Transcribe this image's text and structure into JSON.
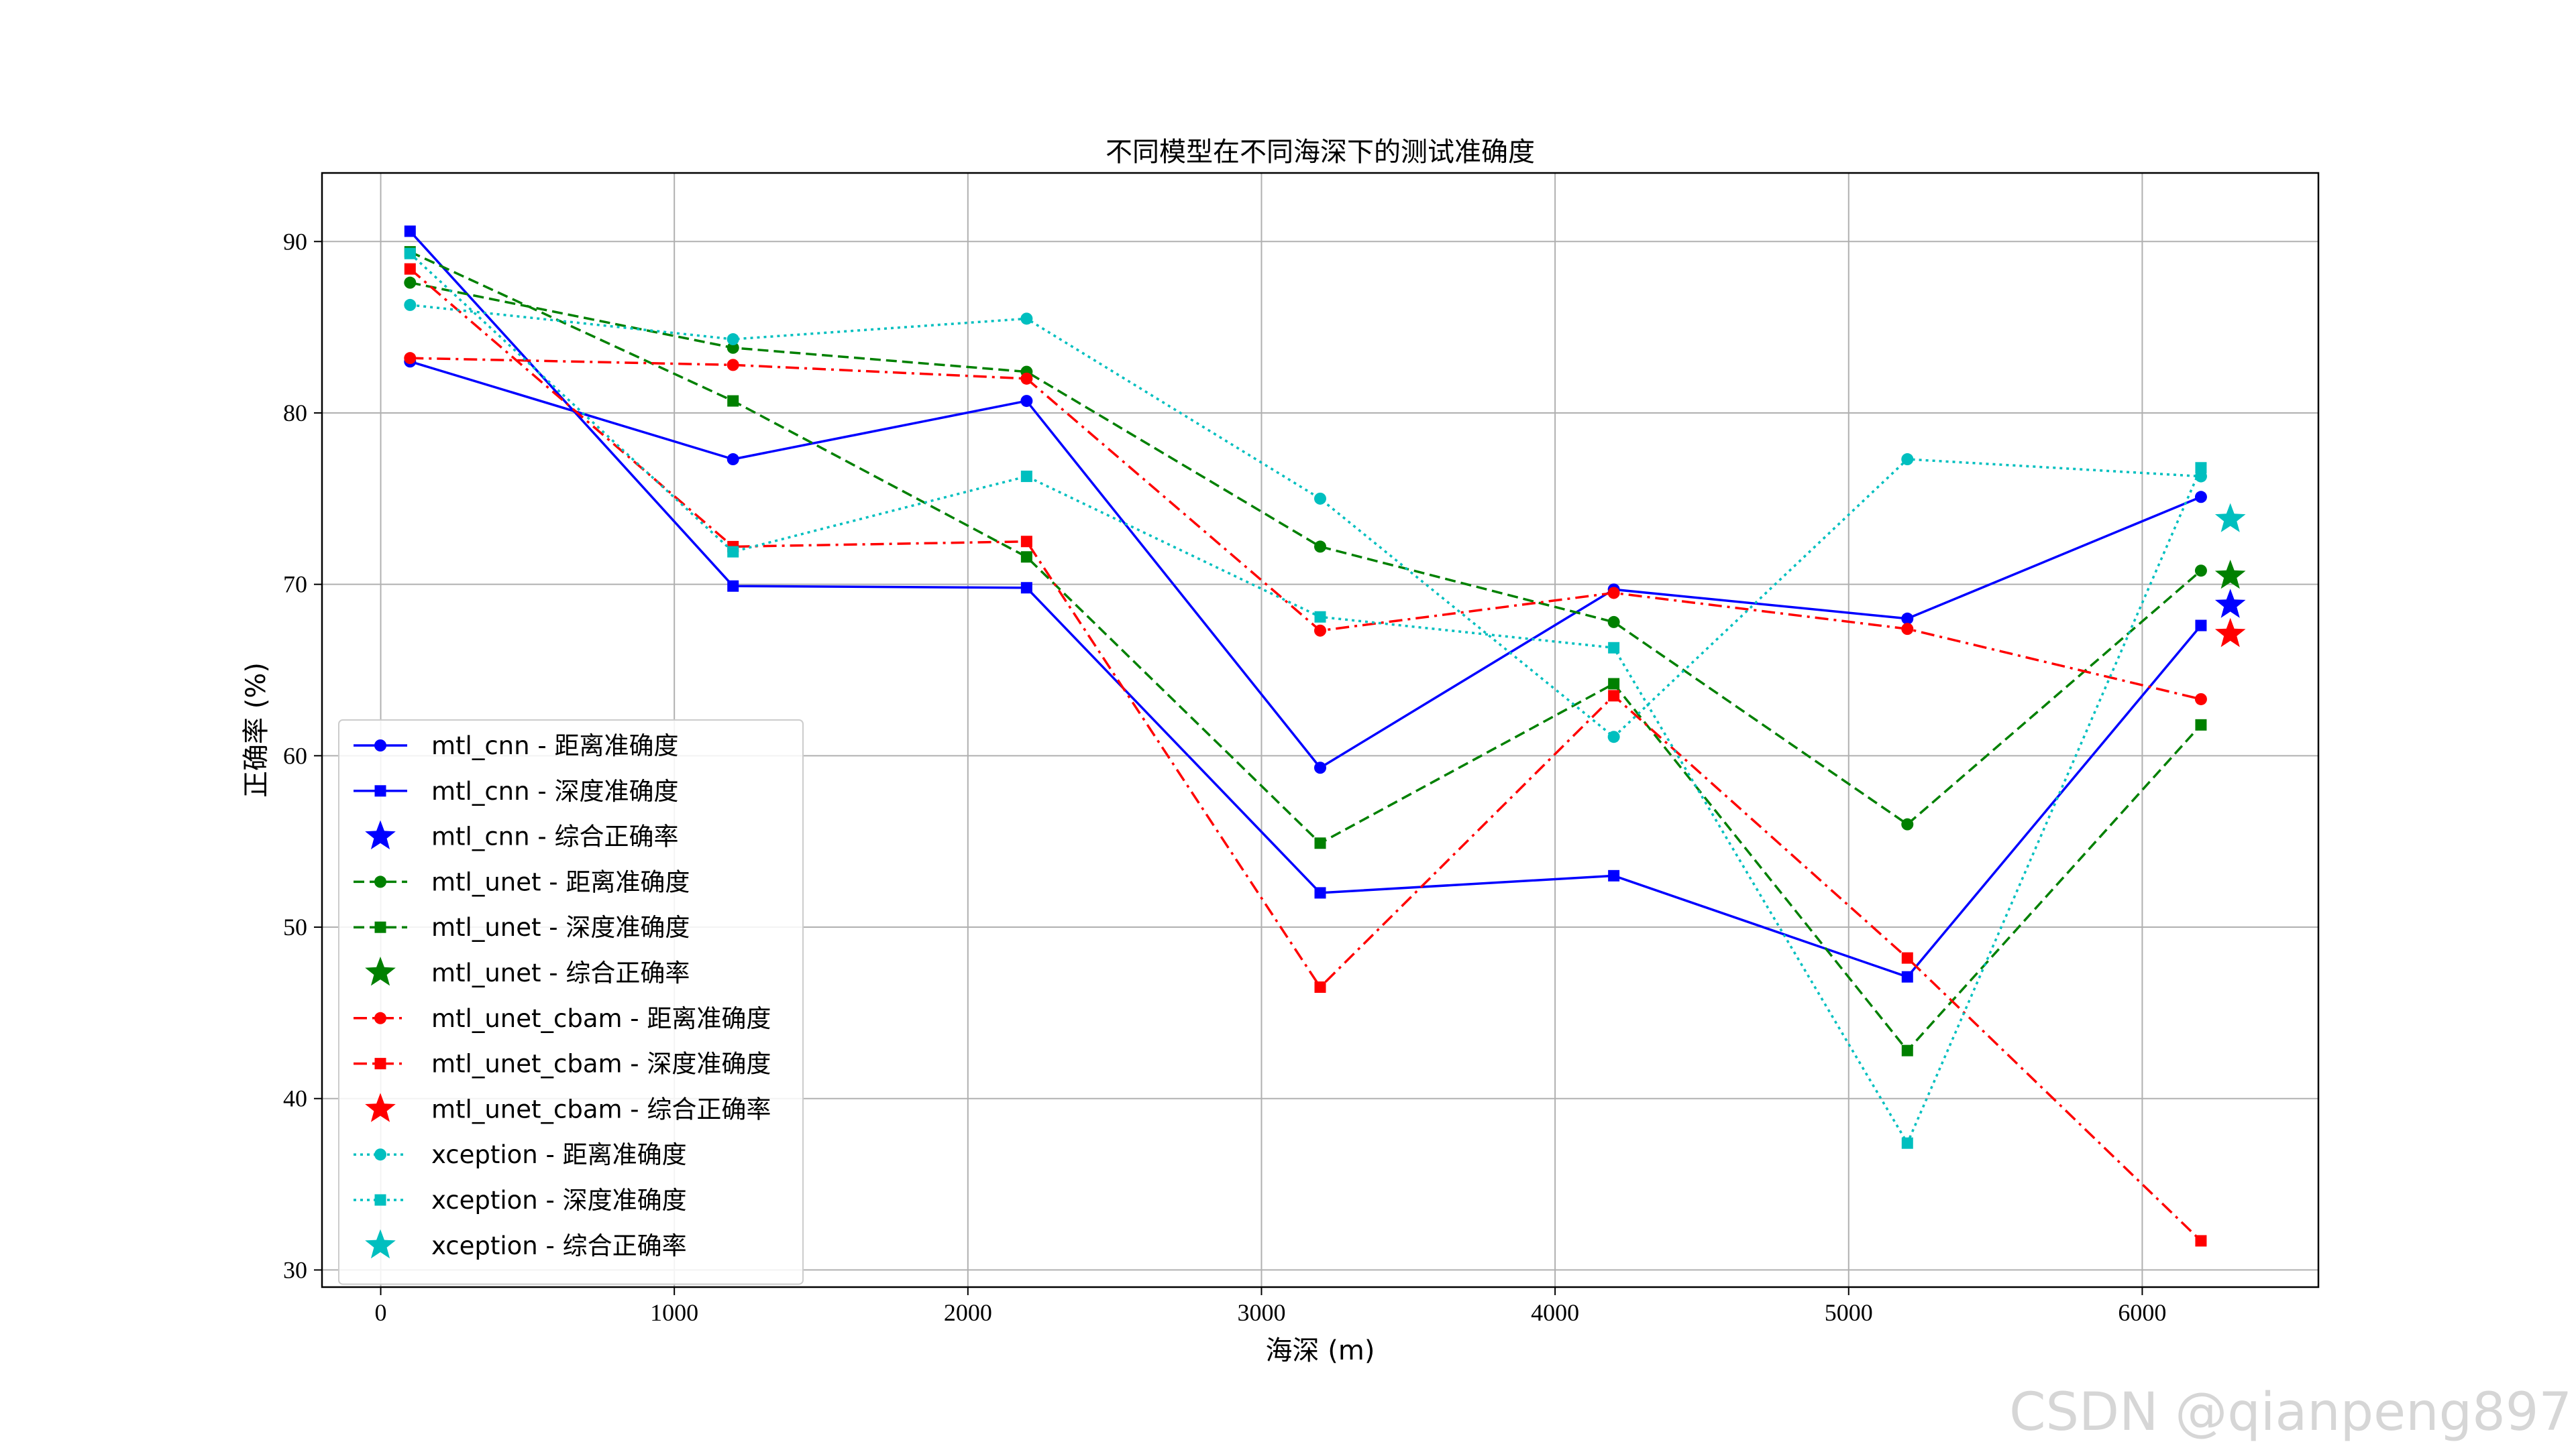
{
  "watermark": "CSDN @qianpeng897",
  "chart_data": {
    "type": "line",
    "title": "不同模型在不同海深下的测试准确度",
    "xlabel": "海深 (m)",
    "ylabel": "正确率 (%)",
    "xlim": [
      -200,
      6600
    ],
    "ylim": [
      29,
      94
    ],
    "xticks": [
      0,
      1000,
      2000,
      3000,
      4000,
      5000,
      6000
    ],
    "yticks": [
      30,
      40,
      50,
      60,
      70,
      80,
      90
    ],
    "grid": true,
    "legend_position": "lower-left",
    "x": [
      100,
      1200,
      2200,
      3200,
      4200,
      5200,
      6200
    ],
    "series": [
      {
        "name": "mtl_cnn - 距离准确度",
        "model": "mtl_cnn",
        "color": "#0000ff",
        "line_style": "solid",
        "marker": "circle",
        "values": [
          83.0,
          77.3,
          80.7,
          59.3,
          69.7,
          68.0,
          75.1
        ]
      },
      {
        "name": "mtl_cnn - 深度准确度",
        "model": "mtl_cnn",
        "color": "#0000ff",
        "line_style": "solid",
        "marker": "square",
        "values": [
          90.6,
          69.9,
          69.8,
          52.0,
          53.0,
          47.1,
          67.6
        ]
      },
      {
        "name": "mtl_cnn - 综合正确率",
        "model": "mtl_cnn",
        "color": "#0000ff",
        "line_style": "none",
        "marker": "star",
        "points": [
          {
            "x": 6300,
            "y": 68.8
          }
        ]
      },
      {
        "name": "mtl_unet - 距离准确度",
        "model": "mtl_unet",
        "color": "#008000",
        "line_style": "dashed",
        "marker": "circle",
        "values": [
          87.6,
          83.8,
          82.4,
          72.2,
          67.8,
          56.0,
          70.8
        ]
      },
      {
        "name": "mtl_unet - 深度准确度",
        "model": "mtl_unet",
        "color": "#008000",
        "line_style": "dashed",
        "marker": "square",
        "values": [
          89.4,
          80.7,
          71.6,
          54.9,
          64.2,
          42.8,
          61.8
        ]
      },
      {
        "name": "mtl_unet - 综合正确率",
        "model": "mtl_unet",
        "color": "#008000",
        "line_style": "none",
        "marker": "star",
        "points": [
          {
            "x": 6300,
            "y": 70.5
          }
        ]
      },
      {
        "name": "mtl_unet_cbam - 距离准确度",
        "model": "mtl_unet_cbam",
        "color": "#ff0000",
        "line_style": "dashdot",
        "marker": "circle",
        "values": [
          83.2,
          82.8,
          82.0,
          67.3,
          69.5,
          67.4,
          63.3
        ]
      },
      {
        "name": "mtl_unet_cbam - 深度准确度",
        "model": "mtl_unet_cbam",
        "color": "#ff0000",
        "line_style": "dashdot",
        "marker": "square",
        "values": [
          88.4,
          72.2,
          72.5,
          46.5,
          63.5,
          48.2,
          31.7
        ]
      },
      {
        "name": "mtl_unet_cbam - 综合正确率",
        "model": "mtl_unet_cbam",
        "color": "#ff0000",
        "line_style": "none",
        "marker": "star",
        "points": [
          {
            "x": 6300,
            "y": 67.1
          }
        ]
      },
      {
        "name": "xception - 距离准确度",
        "model": "xception",
        "color": "#00bfbf",
        "line_style": "dotted",
        "marker": "circle",
        "values": [
          86.3,
          84.3,
          85.5,
          75.0,
          61.1,
          77.3,
          76.3
        ]
      },
      {
        "name": "xception - 深度准确度",
        "model": "xception",
        "color": "#00bfbf",
        "line_style": "dotted",
        "marker": "square",
        "values": [
          89.3,
          71.9,
          76.3,
          68.1,
          66.3,
          37.4,
          76.8
        ]
      },
      {
        "name": "xception - 综合正确率",
        "model": "xception",
        "color": "#00bfbf",
        "line_style": "none",
        "marker": "star",
        "points": [
          {
            "x": 6300,
            "y": 73.8
          }
        ]
      }
    ]
  }
}
